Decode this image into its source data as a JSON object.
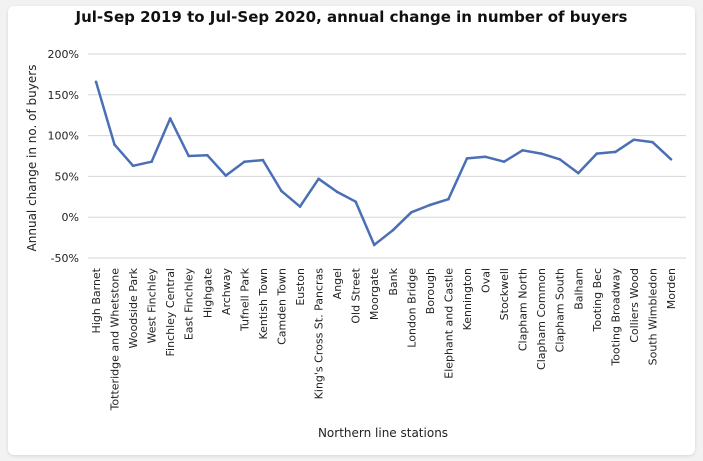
{
  "chart_data": {
    "type": "line",
    "title": "Jul-Sep 2019 to Jul-Sep 2020, annual change in number of buyers",
    "xlabel": "Northern line stations",
    "ylabel": "Annual change in no. of buyers",
    "ylim": [
      -50,
      200
    ],
    "yticks": [
      -50,
      0,
      50,
      100,
      150,
      200
    ],
    "ytick_labels": [
      "-50%",
      "0%",
      "50%",
      "100%",
      "150%",
      "200%"
    ],
    "grid": "horizontal",
    "color": "#4a6fb5",
    "categories": [
      "High Barnet",
      "Totteridge and Whetstone",
      "Woodside Park",
      "West Finchley",
      "Finchley Central",
      "East Finchley",
      "Highgate",
      "Archway",
      "Tufnell Park",
      "Kentish Town",
      "Camden Town",
      "Euston",
      "King's Cross St. Pancras",
      "Angel",
      "Old Street",
      "Moorgate",
      "Bank",
      "London Bridge",
      "Borough",
      "Elephant and Castle",
      "Kennington",
      "Oval",
      "Stockwell",
      "Clapham North",
      "Clapham Common",
      "Clapham South",
      "Balham",
      "Tooting Bec",
      "Tooting Broadway",
      "Colliers Wood",
      "South Wimbledon",
      "Morden"
    ],
    "values": [
      166,
      89,
      63,
      68,
      121,
      75,
      76,
      51,
      68,
      70,
      32,
      13,
      47,
      31,
      19,
      -34,
      -16,
      6,
      15,
      22,
      72,
      74,
      68,
      82,
      78,
      71,
      54,
      78,
      80,
      95,
      92,
      71
    ]
  }
}
